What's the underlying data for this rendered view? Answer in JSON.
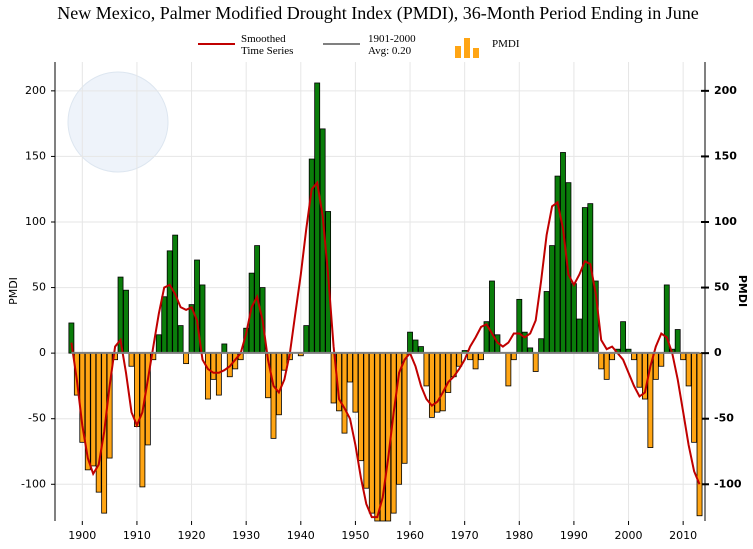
{
  "chart_data": {
    "type": "bar",
    "title": "New Mexico, Palmer Modified Drought Index (PMDI), 36-Month Period Ending in June",
    "y_label": "PMDI",
    "y2_label": "PMDI",
    "grid": true,
    "xlim": [
      1895,
      2014
    ],
    "xticks": [
      1900,
      1910,
      1920,
      1930,
      1940,
      1950,
      1960,
      1970,
      1980,
      1990,
      2000,
      2010
    ],
    "ylim": [
      -128,
      222
    ],
    "yticks": [
      -100,
      -50,
      0,
      50,
      100,
      150,
      200
    ],
    "y2lim": [
      -128,
      222
    ],
    "y2ticks": [
      -100,
      -50,
      0,
      50,
      100,
      150,
      200
    ],
    "x": [
      1898,
      1899,
      1900,
      1901,
      1902,
      1903,
      1904,
      1905,
      1906,
      1907,
      1908,
      1909,
      1910,
      1911,
      1912,
      1913,
      1914,
      1915,
      1916,
      1917,
      1918,
      1919,
      1920,
      1921,
      1922,
      1923,
      1924,
      1925,
      1926,
      1927,
      1928,
      1929,
      1930,
      1931,
      1932,
      1933,
      1934,
      1935,
      1936,
      1937,
      1938,
      1939,
      1940,
      1941,
      1942,
      1943,
      1944,
      1945,
      1946,
      1947,
      1948,
      1949,
      1950,
      1951,
      1952,
      1953,
      1954,
      1955,
      1956,
      1957,
      1958,
      1959,
      1960,
      1961,
      1962,
      1963,
      1964,
      1965,
      1966,
      1967,
      1968,
      1969,
      1970,
      1971,
      1972,
      1973,
      1974,
      1975,
      1976,
      1977,
      1978,
      1979,
      1980,
      1981,
      1982,
      1983,
      1984,
      1985,
      1986,
      1987,
      1988,
      1989,
      1990,
      1991,
      1992,
      1993,
      1994,
      1995,
      1996,
      1997,
      1998,
      1999,
      2000,
      2001,
      2002,
      2003,
      2004,
      2005,
      2006,
      2007,
      2008,
      2009,
      2010,
      2011,
      2012,
      2013
    ],
    "series": [
      {
        "name": "PMDI",
        "type": "bar",
        "positive_color": "#0a7d0a",
        "negative_color": "#ffa514",
        "values": [
          23,
          -32,
          -68,
          -89,
          -86,
          -106,
          -122,
          -80,
          -5,
          58,
          48,
          -10,
          -56,
          -102,
          -70,
          -5,
          14,
          43,
          78,
          90,
          21,
          -8,
          37,
          71,
          52,
          -35,
          -20,
          -32,
          7,
          -18,
          -12,
          -5,
          19,
          61,
          82,
          50,
          -34,
          -65,
          -47,
          -13,
          -5,
          0,
          -2,
          21,
          148,
          206,
          171,
          108,
          -38,
          -44,
          -61,
          -22,
          -45,
          -82,
          -103,
          -122,
          -128,
          -128,
          -128,
          -122,
          -100,
          -84,
          16,
          10,
          5,
          -25,
          -49,
          -45,
          -44,
          -30,
          -18,
          -10,
          2,
          -5,
          -12,
          -5,
          24,
          55,
          14,
          0,
          -25,
          -5,
          41,
          16,
          4,
          -14,
          11,
          47,
          82,
          135,
          153,
          130,
          53,
          26,
          111,
          114,
          55,
          -12,
          -20,
          -5,
          3,
          24,
          3,
          -5,
          -26,
          -35,
          -72,
          -20,
          -10,
          52,
          3,
          18,
          -5,
          -25,
          -68,
          -124
        ]
      },
      {
        "name": "Smoothed Time Series",
        "type": "line",
        "color": "#c00000",
        "values": [
          8,
          -20,
          -55,
          -80,
          -92,
          -85,
          -60,
          -25,
          5,
          10,
          -15,
          -45,
          -55,
          -45,
          -20,
          5,
          30,
          50,
          52,
          45,
          35,
          33,
          35,
          25,
          -5,
          -12,
          -15,
          -15,
          -13,
          -10,
          -5,
          0,
          15,
          35,
          43,
          25,
          -5,
          -25,
          -30,
          -20,
          0,
          30,
          60,
          95,
          125,
          130,
          105,
          60,
          5,
          -35,
          -42,
          -50,
          -70,
          -95,
          -115,
          -125,
          -125,
          -110,
          -80,
          -45,
          -15,
          -5,
          0,
          -10,
          -25,
          -35,
          -40,
          -37,
          -30,
          -22,
          -18,
          -12,
          -5,
          5,
          12,
          20,
          22,
          15,
          8,
          5,
          8,
          15,
          15,
          12,
          15,
          25,
          55,
          90,
          112,
          115,
          95,
          60,
          52,
          60,
          70,
          68,
          45,
          10,
          3,
          5,
          0,
          -5,
          -15,
          -25,
          -33,
          -30,
          -10,
          5,
          15,
          12,
          0,
          -20,
          -45,
          -70,
          -90,
          -100
        ]
      },
      {
        "name": "1901-2000 Avg: 0.20",
        "type": "hline",
        "color": "#808080",
        "value": 0.2
      }
    ]
  }
}
